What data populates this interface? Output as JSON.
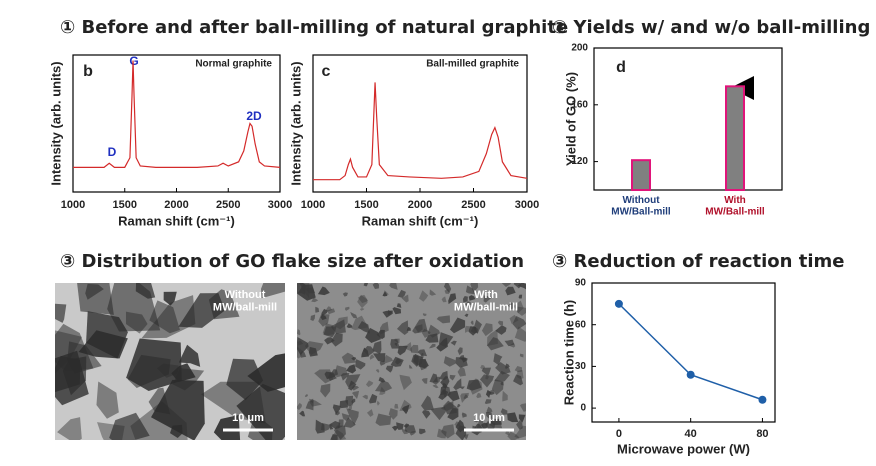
{
  "headings": [
    "① Before and after ball-milling of natural graphite",
    "② Yields w/ and w/o ball-milling",
    "③ Distribution of GO flake size after oxidation",
    "③ Reduction of reaction time"
  ],
  "chart_data": [
    {
      "type": "line",
      "panel_label": "b",
      "annotation": "Normal graphite",
      "peak_labels": [
        "D",
        "G",
        "2D"
      ],
      "x": [
        1000,
        1300,
        1350,
        1400,
        1500,
        1550,
        1570,
        1580,
        1590,
        1610,
        1650,
        1800,
        2000,
        2200,
        2400,
        2450,
        2500,
        2600,
        2650,
        2690,
        2710,
        2730,
        2760,
        2800,
        2850,
        3000
      ],
      "values": [
        18,
        18,
        21,
        18,
        18,
        25,
        70,
        96,
        70,
        25,
        19,
        18,
        18,
        18,
        19,
        21,
        19,
        22,
        30,
        44,
        50,
        48,
        35,
        22,
        19,
        18
      ],
      "color": "#d42a2a",
      "xlim": [
        1000,
        3000
      ],
      "xticks": [
        1000,
        1500,
        2000,
        2500,
        3000
      ],
      "ylim": [
        0,
        100
      ],
      "xlabel": "Raman shift (cm⁻¹)",
      "ylabel": "Intensity (arb. units)"
    },
    {
      "type": "line",
      "panel_label": "c",
      "annotation": "Ball-milled graphite",
      "x": [
        1000,
        1250,
        1300,
        1330,
        1350,
        1370,
        1420,
        1500,
        1550,
        1570,
        1580,
        1595,
        1620,
        1700,
        1900,
        2200,
        2400,
        2550,
        2620,
        2670,
        2700,
        2730,
        2770,
        2850,
        3000
      ],
      "values": [
        9,
        9,
        12,
        20,
        24,
        18,
        11,
        11,
        20,
        60,
        80,
        55,
        20,
        12,
        11,
        10,
        11,
        15,
        28,
        42,
        47,
        40,
        22,
        12,
        10
      ],
      "color": "#d42a2a",
      "xlim": [
        1000,
        3000
      ],
      "xticks": [
        1000,
        1500,
        2000,
        2500,
        3000
      ],
      "ylim": [
        0,
        100
      ],
      "xlabel": "Raman shift (cm⁻¹)",
      "ylabel": "Intensity (arb. units)"
    },
    {
      "type": "bar",
      "panel_label": "d",
      "categories": [
        "Without\nMW/Ball-mill",
        "With\nMW/Ball-mill"
      ],
      "values": [
        121,
        173
      ],
      "color": "#808080",
      "edge_color": "#e0147a",
      "category_colors": [
        "#1f3d7a",
        "#b0102a"
      ],
      "ylim": [
        100,
        200
      ],
      "yticks": [
        120,
        160,
        200
      ],
      "ylabel": "Yield of GO (%)"
    },
    {
      "type": "line",
      "markers": true,
      "x": [
        0,
        40,
        80
      ],
      "values": [
        75,
        24,
        6
      ],
      "color": "#1f5fa8",
      "xlim": [
        -15,
        87
      ],
      "xticks": [
        0,
        40,
        80
      ],
      "ylim": [
        -10,
        90
      ],
      "yticks": [
        0,
        30,
        60,
        90
      ],
      "xlabel": "Microwave power (W)",
      "ylabel": "Reaction time (h)"
    }
  ],
  "images": [
    {
      "label": "Without\nMW/ball-mill",
      "scale_bar": "10 μm"
    },
    {
      "label": "With\nMW/ball-mill",
      "scale_bar": "10 μm"
    }
  ]
}
